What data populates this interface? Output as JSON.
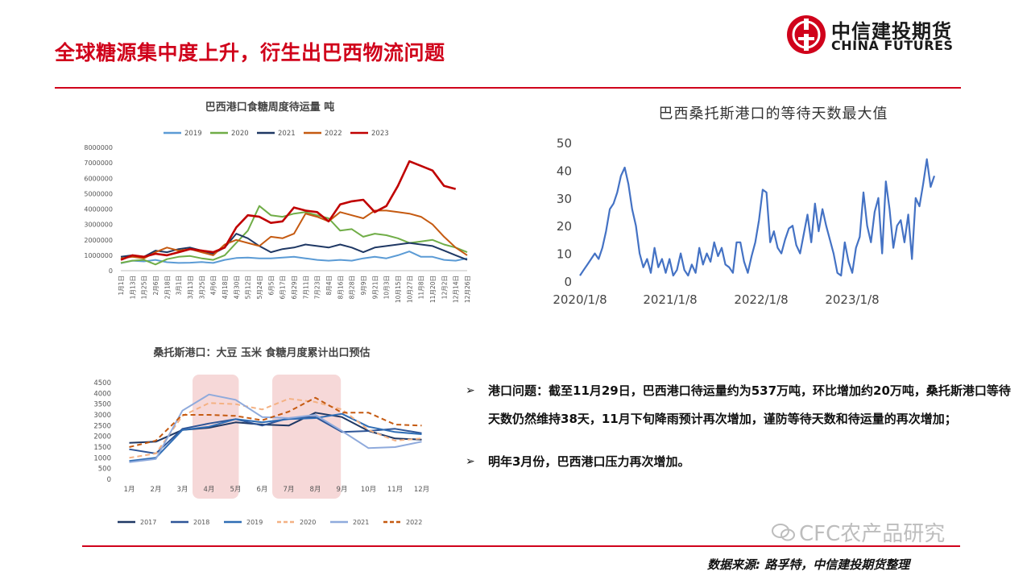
{
  "header": {
    "title": "全球糖源集中度上升，衍生出巴西物流问题",
    "logo_cn": "中信建投期货",
    "logo_en": "CHINA FUTURES"
  },
  "bullets": [
    "港口问题：截至11月29日，巴西港口待运量约为537万吨，环比增加约20万吨，桑托斯港口等待天数仍然维持38天，11月下旬降雨预计再次增加，谨防等待天数和待运量的再次增加；",
    "明年3月份，巴西港口压力再次增加。"
  ],
  "bullet_marker": "➢",
  "watermark": "CFC农产品研究",
  "footer": {
    "source": "数据来源: 路孚特，中信建投期货整理"
  },
  "chart_data": [
    {
      "type": "line",
      "title": "巴西港口食糖周度待运量 吨",
      "x_tick_labels": [
        "1月1日",
        "1月13日",
        "1月25日",
        "2月6日",
        "2月18日",
        "3月1日",
        "3月13日",
        "3月25日",
        "4月6日",
        "4月18日",
        "4月30日",
        "5月12日",
        "5月24日",
        "6月5日",
        "6月17日",
        "6月29日",
        "7月11日",
        "7月23日",
        "8月4日",
        "8月16日",
        "8月28日",
        "9月9日",
        "9月21日",
        "10月3日",
        "10月15日",
        "10月27日",
        "11月8日",
        "11月20日",
        "12月2日",
        "12月14日",
        "12月26日"
      ],
      "y_tick_labels": [
        "0",
        "1000000",
        "2000000",
        "3000000",
        "4000000",
        "5000000",
        "6000000",
        "7000000",
        "8000000"
      ],
      "ylim": [
        0,
        8000000
      ],
      "legend_position": "top",
      "series": [
        {
          "name": "2019",
          "color": "#5b9bd5",
          "values": [
            480000,
            650000,
            600000,
            700000,
            550000,
            500000,
            520000,
            560000,
            500000,
            700000,
            820000,
            850000,
            800000,
            800000,
            850000,
            900000,
            800000,
            700000,
            650000,
            700000,
            650000,
            800000,
            900000,
            800000,
            1000000,
            1250000,
            900000,
            900000,
            700000,
            650000,
            800000
          ]
        },
        {
          "name": "2020",
          "color": "#70ad47",
          "values": [
            500000,
            650000,
            700000,
            400000,
            750000,
            900000,
            950000,
            800000,
            700000,
            1000000,
            1800000,
            2600000,
            4200000,
            3600000,
            3500000,
            3700000,
            3800000,
            3600000,
            3400000,
            2600000,
            2700000,
            2200000,
            2400000,
            2300000,
            2100000,
            1800000,
            1900000,
            2000000,
            1700000,
            1500000,
            1200000
          ]
        },
        {
          "name": "2021",
          "color": "#1f3864",
          "values": [
            900000,
            1000000,
            900000,
            1300000,
            1200000,
            1400000,
            1500000,
            1300000,
            1100000,
            1500000,
            2400000,
            2100000,
            1600000,
            1200000,
            1400000,
            1500000,
            1700000,
            1600000,
            1500000,
            1700000,
            1500000,
            1200000,
            1500000,
            1600000,
            1700000,
            1800000,
            1700000,
            1600000,
            1300000,
            1000000,
            700000
          ]
        },
        {
          "name": "2022",
          "color": "#c55a11",
          "values": [
            800000,
            900000,
            800000,
            1200000,
            1500000,
            1300000,
            1400000,
            1200000,
            1000000,
            1700000,
            2000000,
            1800000,
            1600000,
            2200000,
            2100000,
            2400000,
            3700000,
            3500000,
            3200000,
            3800000,
            3600000,
            3400000,
            3900000,
            3900000,
            3800000,
            3700000,
            3500000,
            3000000,
            2200000,
            1500000,
            1000000
          ]
        },
        {
          "name": "2023",
          "color": "#c00000",
          "values": [
            700000,
            1000000,
            900000,
            1100000,
            1000000,
            1200000,
            1400000,
            1300000,
            1200000,
            1500000,
            2800000,
            3600000,
            3500000,
            3100000,
            3200000,
            4100000,
            3900000,
            3800000,
            3200000,
            4300000,
            4500000,
            4600000,
            3800000,
            4200000,
            5500000,
            7100000,
            6800000,
            6500000,
            5500000,
            5300000,
            null
          ]
        }
      ]
    },
    {
      "type": "line",
      "title": "巴西桑托斯港口的等待天数最大值",
      "x_tick_labels": [
        "2020/1/8",
        "2021/1/8",
        "2022/1/8",
        "2023/1/8"
      ],
      "y_tick_labels": [
        "0",
        "10",
        "20",
        "30",
        "40",
        "50"
      ],
      "ylim": [
        0,
        50
      ],
      "series": [
        {
          "color": "#4472c4",
          "values": [
            2,
            4,
            6,
            8,
            10,
            8,
            12,
            18,
            26,
            28,
            32,
            38,
            41,
            35,
            26,
            20,
            10,
            5,
            8,
            3,
            12,
            5,
            8,
            3,
            8,
            2,
            4,
            10,
            4,
            2,
            6,
            3,
            12,
            6,
            10,
            7,
            14,
            9,
            12,
            6,
            5,
            3,
            14,
            14,
            7,
            3,
            9,
            14,
            22,
            33,
            32,
            14,
            18,
            12,
            10,
            15,
            19,
            20,
            13,
            10,
            17,
            24,
            14,
            28,
            18,
            26,
            20,
            15,
            10,
            3,
            2,
            14,
            7,
            3,
            12,
            16,
            32,
            20,
            14,
            25,
            30,
            10,
            36,
            26,
            12,
            20,
            22,
            14,
            24,
            8,
            30,
            27,
            35,
            44,
            34,
            38
          ]
        }
      ]
    },
    {
      "type": "line",
      "title": "桑托斯港口：大豆 玉米 食糖月度累计出口预估",
      "categories": [
        "1月",
        "2月",
        "3月",
        "4月",
        "5月",
        "6月",
        "7月",
        "8月",
        "9月",
        "10月",
        "11月",
        "12月"
      ],
      "y_tick_labels": [
        "0",
        "500",
        "1000",
        "1500",
        "2000",
        "2500",
        "3000",
        "3500",
        "4000",
        "4500"
      ],
      "ylim": [
        0,
        4500
      ],
      "legend_position": "bottom",
      "series": [
        {
          "name": "2017",
          "color": "#1f3864",
          "dashed": false,
          "values": [
            1700,
            1750,
            2300,
            2400,
            2650,
            2550,
            2500,
            3100,
            2900,
            2250,
            1900,
            1850
          ]
        },
        {
          "name": "2018",
          "color": "#2e5597",
          "dashed": false,
          "values": [
            1400,
            1200,
            2350,
            2600,
            2800,
            2500,
            2850,
            2900,
            2200,
            2250,
            2350,
            2150
          ]
        },
        {
          "name": "2019",
          "color": "#2f6db5",
          "dashed": false,
          "values": [
            850,
            1000,
            2300,
            2450,
            2800,
            2650,
            2800,
            2850,
            3050,
            2450,
            2200,
            2100
          ]
        },
        {
          "name": "2020",
          "color": "#f4b183",
          "dashed": true,
          "values": [
            1000,
            1200,
            2950,
            3550,
            3500,
            3250,
            3750,
            3600,
            3250,
            2300,
            1800,
            1900
          ]
        },
        {
          "name": "2021",
          "color": "#8faadc",
          "dashed": false,
          "values": [
            800,
            950,
            3200,
            3950,
            3700,
            2900,
            2850,
            3000,
            2250,
            1450,
            1500,
            1750
          ]
        },
        {
          "name": "2022",
          "color": "#c55a11",
          "dashed": true,
          "values": [
            1500,
            1800,
            3000,
            3000,
            2950,
            2750,
            3150,
            3800,
            3100,
            3100,
            2550,
            2500
          ]
        }
      ]
    }
  ]
}
